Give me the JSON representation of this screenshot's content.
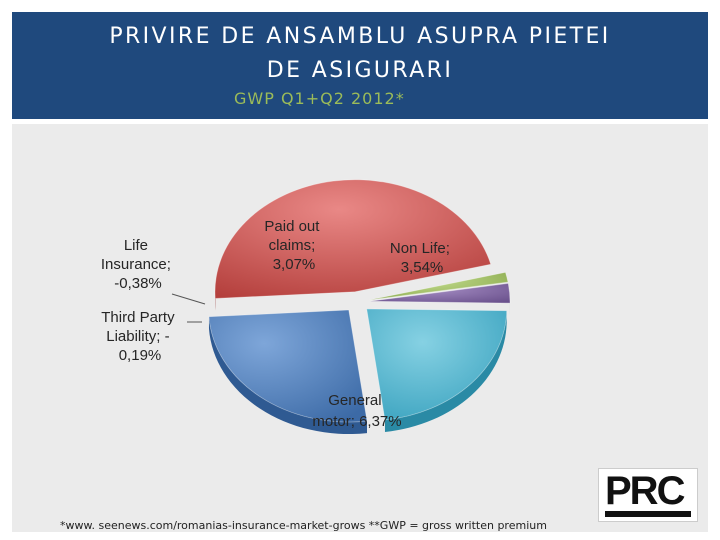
{
  "header": {
    "title_line1": "PRIVIRE DE ANSAMBLU ASUPRA PIETEI",
    "title_line2": "DE ASIGURARI",
    "subtitle": "GWP Q1+Q2 2012*"
  },
  "footnote": "*www. seenews.com/romanias-insurance-market-grows **GWP = gross written premium",
  "logo": {
    "text": "PRC"
  },
  "colors": {
    "header_bg": "#1f497d",
    "subtitle": "#9bbb59",
    "non_life": "#4f81bd",
    "general_motor": "#c0504d",
    "third_party": "#9bbb59",
    "life": "#8064a2",
    "paid_out": "#4bacc6"
  },
  "chart_data": {
    "type": "pie",
    "style": "3d-exploded",
    "slices": [
      {
        "name": "Non Life",
        "value": 3.54,
        "label_lines": [
          "Non Life;",
          "3,54%"
        ]
      },
      {
        "name": "General motor",
        "value": 6.37,
        "label_lines": [
          "General",
          "motor; 6,37%"
        ]
      },
      {
        "name": "Third Party Liability",
        "value": -0.19,
        "label_lines": [
          "Third Party",
          "Liability; -",
          "0,19%"
        ]
      },
      {
        "name": "Life Insurance",
        "value": -0.38,
        "label_lines": [
          "Life",
          "Insurance;",
          "-0,38%"
        ]
      },
      {
        "name": "Paid out claims",
        "value": 3.07,
        "label_lines": [
          "Paid out",
          "claims;",
          "3,07%"
        ]
      }
    ]
  }
}
